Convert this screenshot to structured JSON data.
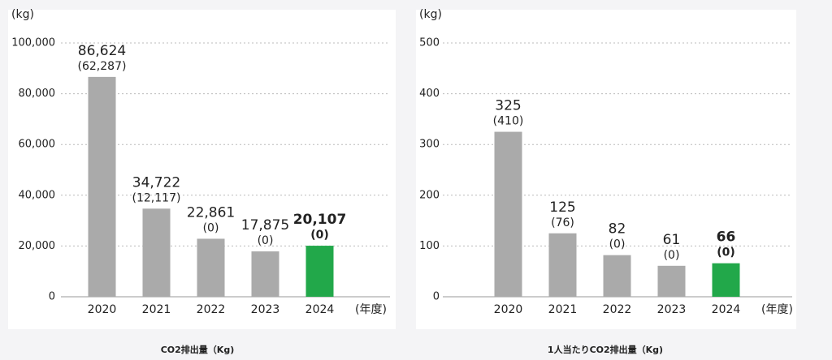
{
  "chart_data": [
    {
      "type": "bar",
      "title": "CO2排出量（Kg)",
      "unit_label": "(kg)",
      "x_unit_label": "(年度)",
      "categories": [
        "2020",
        "2021",
        "2022",
        "2023",
        "2024"
      ],
      "values": [
        86624,
        34722,
        22861,
        17875,
        20107
      ],
      "value_labels": [
        "86,624",
        "34,722",
        "22,861",
        "17,875",
        "20,107"
      ],
      "sub_values": [
        62287,
        12117,
        0,
        0,
        0
      ],
      "sub_value_labels": [
        "(62,287)",
        "(12,117)",
        "(0)",
        "(0)",
        "(0)"
      ],
      "colors": [
        "#aaaaaa",
        "#aaaaaa",
        "#aaaaaa",
        "#aaaaaa",
        "#22a84a"
      ],
      "label_bold": [
        false,
        false,
        false,
        false,
        true
      ],
      "ylim": [
        0,
        100000
      ],
      "yticks": [
        0,
        {
          "value": 20000,
          "label": "20,000"
        },
        {
          "value": 40000,
          "label": "40,000"
        },
        {
          "value": 60000,
          "label": "60,000"
        },
        {
          "value": 80000,
          "label": "80,000"
        },
        {
          "value": 100000,
          "label": "100,000"
        }
      ],
      "grid": true
    },
    {
      "type": "bar",
      "title": "1人当たりCO2排出量（Kg)",
      "unit_label": "(kg)",
      "x_unit_label": "(年度)",
      "categories": [
        "2020",
        "2021",
        "2022",
        "2023",
        "2024"
      ],
      "values": [
        325,
        125,
        82,
        61,
        66
      ],
      "sub_values": [
        410,
        76,
        0,
        0,
        0
      ],
      "sub_value_labels": [
        "(410)",
        "(76)",
        "(0)",
        "(0)",
        "(0)"
      ],
      "colors": [
        "#aaaaaa",
        "#aaaaaa",
        "#aaaaaa",
        "#aaaaaa",
        "#22a84a"
      ],
      "label_bold": [
        false,
        false,
        false,
        false,
        true
      ],
      "ylim": [
        0,
        500
      ],
      "yticks": [
        0,
        100,
        200,
        300,
        400,
        500
      ],
      "grid": true
    }
  ]
}
